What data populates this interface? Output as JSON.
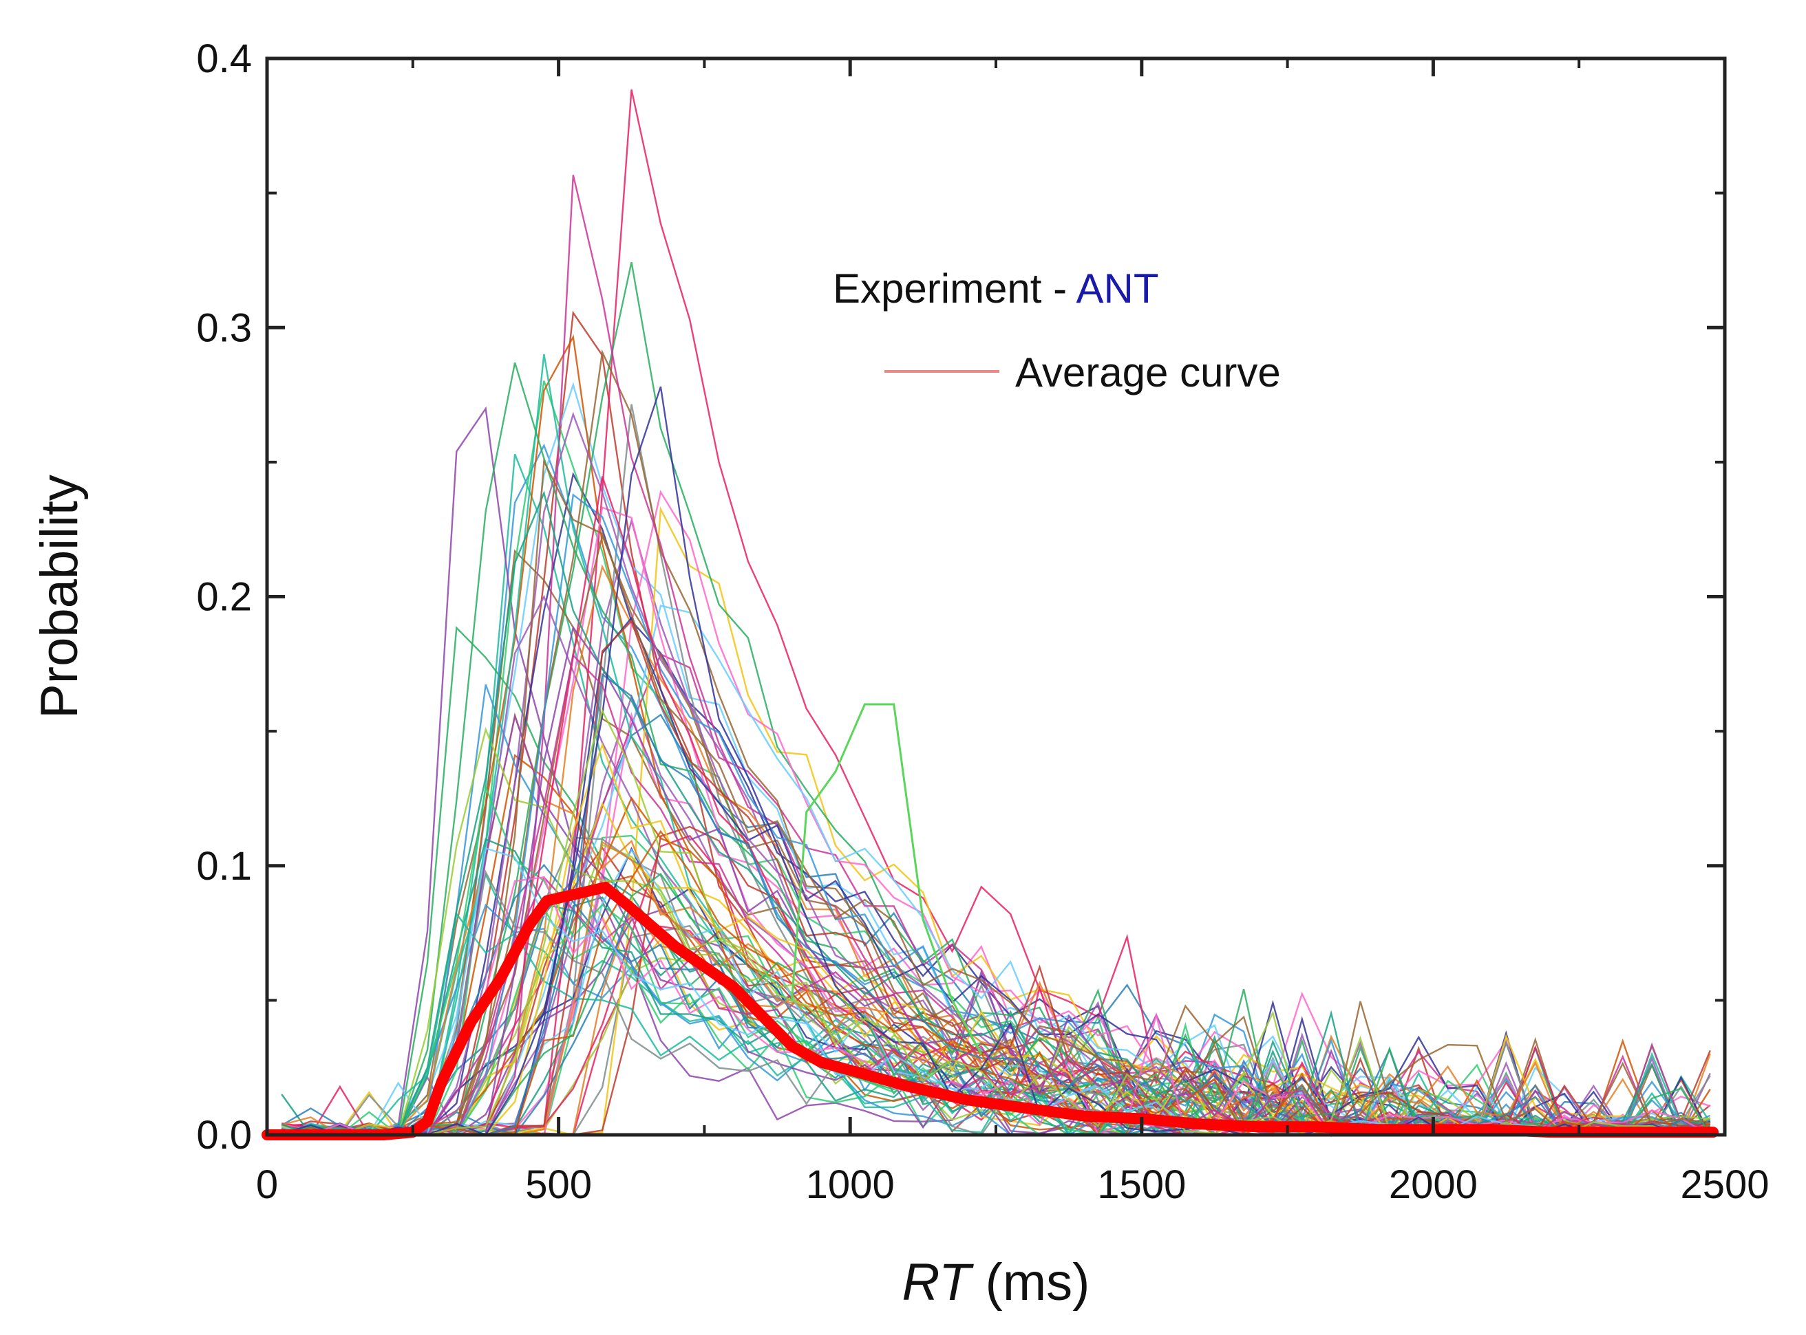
{
  "chart_data": {
    "type": "line",
    "title": "",
    "xlabel_italic": "RT",
    "xlabel_unit": " (ms)",
    "ylabel": "Probability",
    "xlim": [
      0,
      2500
    ],
    "ylim": [
      0.0,
      0.4
    ],
    "xticks": [
      0,
      500,
      1000,
      1500,
      2000,
      2500
    ],
    "xtick_labels": [
      "0",
      "500",
      "1000",
      "1500",
      "2000",
      "2500"
    ],
    "yticks": [
      0.0,
      0.1,
      0.2,
      0.3,
      0.4
    ],
    "ytick_labels": [
      "0.0",
      "0.1",
      "0.2",
      "0.3",
      "0.4"
    ],
    "legend": {
      "title_prefix": "Experiment - ",
      "title_highlight": "ANT",
      "title_highlight_color": "#1a1aa8",
      "entry_label": "Average curve",
      "entry_color": "#e88a8a",
      "position": "top-right"
    },
    "average_curve": {
      "name": "Average curve",
      "color": "#ff0000",
      "x": [
        0,
        100,
        200,
        250,
        275,
        300,
        350,
        400,
        450,
        480,
        520,
        560,
        580,
        620,
        700,
        800,
        900,
        950,
        1000,
        1100,
        1200,
        1300,
        1400,
        1500,
        1600,
        1700,
        1800,
        1900,
        2000,
        2100,
        2200,
        2300,
        2400,
        2480
      ],
      "y": [
        0.0,
        0.0,
        0.0,
        0.001,
        0.005,
        0.02,
        0.042,
        0.058,
        0.078,
        0.087,
        0.089,
        0.091,
        0.092,
        0.085,
        0.07,
        0.055,
        0.033,
        0.027,
        0.024,
        0.018,
        0.013,
        0.01,
        0.007,
        0.006,
        0.004,
        0.003,
        0.003,
        0.002,
        0.002,
        0.002,
        0.001,
        0.001,
        0.001,
        0.001
      ]
    },
    "individual_curves": {
      "count": 80,
      "description": "thin multi-colored individual subject RT distributions",
      "colors": [
        "#2ecc71",
        "#1abc9c",
        "#3498db",
        "#9b59b6",
        "#e91e63",
        "#f1c40f",
        "#e67e22",
        "#7f8c8d",
        "#8e44ad",
        "#16a085",
        "#c0392b",
        "#2980b9",
        "#d35400",
        "#27ae60",
        "#ff66cc",
        "#66ccff",
        "#996633",
        "#333399",
        "#cc3399",
        "#99cc33"
      ],
      "peak_x_range": [
        330,
        700
      ],
      "peak_y_range": [
        0.08,
        0.4
      ]
    }
  }
}
